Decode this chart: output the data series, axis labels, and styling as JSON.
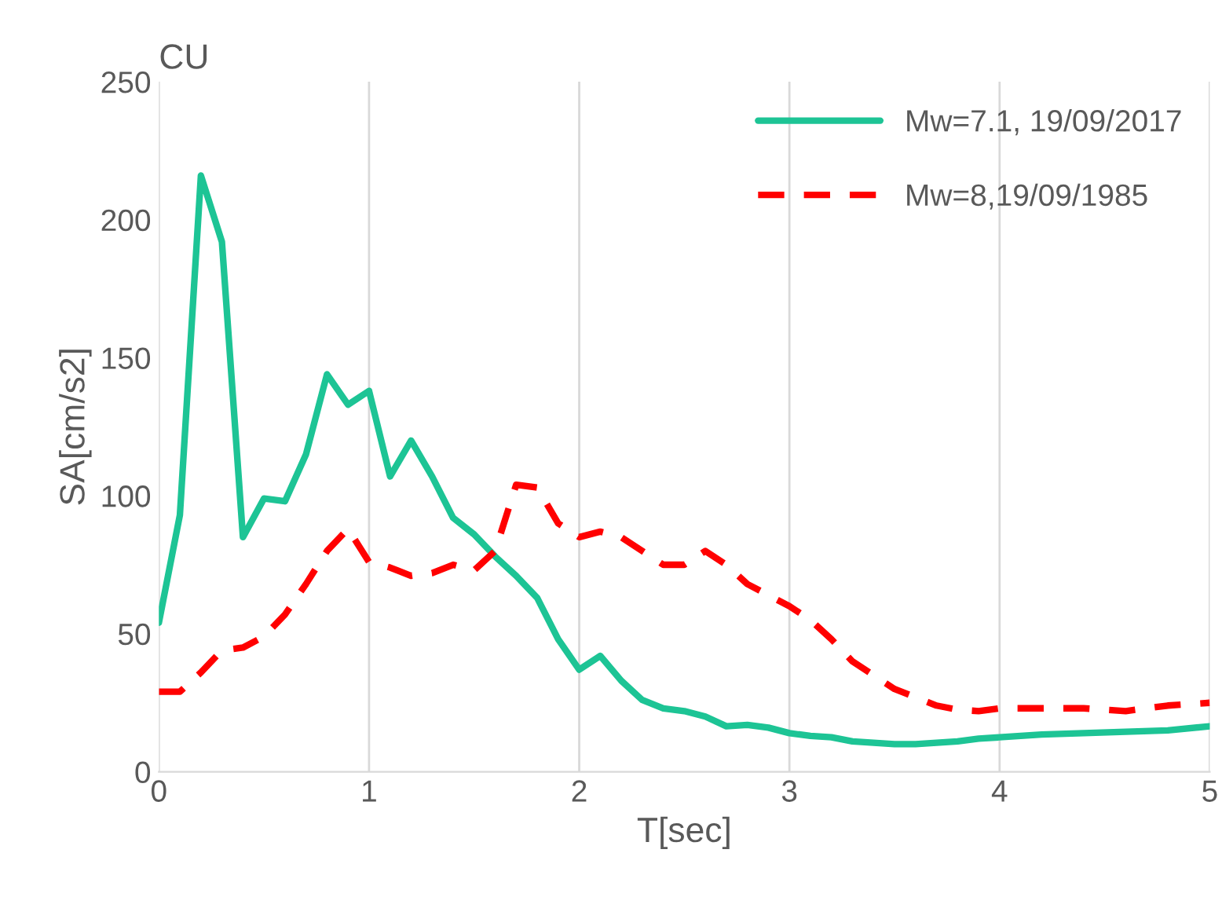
{
  "chart_data": {
    "type": "line",
    "title": "CU",
    "xlabel": "T[sec]",
    "ylabel": "SA[cm/s2]",
    "xlim": [
      0,
      5
    ],
    "xticks": [
      0,
      1,
      2,
      3,
      4,
      5
    ],
    "ylim": [
      0,
      250
    ],
    "yticks": [
      0,
      50,
      100,
      150,
      200,
      250
    ],
    "grid": "x",
    "legend": "top right",
    "series": [
      {
        "name": "Mw=7.1, 19/09/2017",
        "color": "#1dc495",
        "line_style": "solid",
        "x": [
          0,
          0.1,
          0.2,
          0.3,
          0.4,
          0.5,
          0.6,
          0.7,
          0.8,
          0.9,
          1.0,
          1.1,
          1.2,
          1.3,
          1.4,
          1.5,
          1.6,
          1.7,
          1.8,
          1.9,
          2.0,
          2.1,
          2.2,
          2.3,
          2.4,
          2.5,
          2.6,
          2.7,
          2.8,
          2.9,
          3.0,
          3.1,
          3.2,
          3.3,
          3.4,
          3.5,
          3.6,
          3.7,
          3.8,
          3.9,
          4.0,
          4.2,
          4.4,
          4.6,
          4.8,
          5.0
        ],
        "values": [
          54,
          93,
          216,
          192,
          85,
          99,
          98,
          115,
          144,
          133,
          138,
          107,
          120,
          107,
          92,
          86,
          78,
          71,
          63,
          48,
          37,
          42,
          33,
          26,
          23,
          22,
          20,
          16.5,
          17,
          16,
          14,
          13,
          12.5,
          11,
          10.5,
          10,
          10,
          10.5,
          11,
          12,
          12.5,
          13.5,
          14,
          14.5,
          15,
          16.5
        ]
      },
      {
        "name": "Mw=8,19/09/1985",
        "color": "#ff0000",
        "line_style": "dashed",
        "x": [
          0,
          0.1,
          0.2,
          0.3,
          0.4,
          0.5,
          0.6,
          0.7,
          0.8,
          0.9,
          1.0,
          1.1,
          1.2,
          1.3,
          1.4,
          1.5,
          1.6,
          1.7,
          1.8,
          1.9,
          2.0,
          2.1,
          2.2,
          2.3,
          2.4,
          2.5,
          2.6,
          2.7,
          2.8,
          2.9,
          3.0,
          3.1,
          3.2,
          3.3,
          3.4,
          3.5,
          3.6,
          3.7,
          3.8,
          3.9,
          4.0,
          4.2,
          4.4,
          4.6,
          4.8,
          5.0
        ],
        "values": [
          29,
          29,
          36,
          44,
          45,
          49,
          57,
          68,
          80,
          88,
          76,
          74,
          71,
          72,
          75,
          73,
          80,
          104,
          103,
          90,
          85,
          87,
          85,
          80,
          75,
          75,
          80,
          75,
          68,
          64,
          60,
          55,
          48,
          40,
          35,
          30,
          27,
          24,
          22.5,
          22,
          23,
          23,
          23,
          22,
          24,
          25
        ]
      }
    ]
  }
}
